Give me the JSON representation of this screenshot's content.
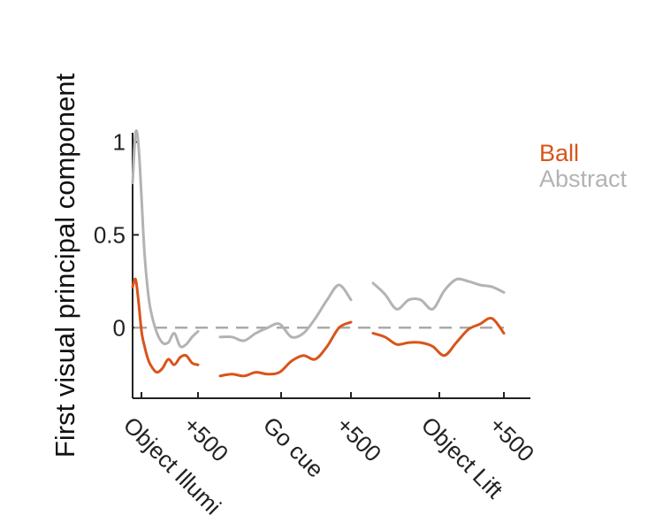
{
  "chart_data": {
    "type": "line",
    "ylabel": "First visual principal component",
    "xlabel": "",
    "ylim": [
      -0.38,
      1.05
    ],
    "yticks": [
      {
        "value": 0,
        "label": "0"
      },
      {
        "value": 0.5,
        "label": "0.5"
      },
      {
        "value": 1,
        "label": "1"
      }
    ],
    "reference_line": {
      "y": 0,
      "style": "dashed",
      "color": "#aaaaaa"
    },
    "grid": false,
    "legend": {
      "placement": "top-right"
    },
    "panels": [
      {
        "event": "Object Illumi",
        "offset_label": "+500",
        "x_range": [
          -50,
          500
        ],
        "event_x": 0,
        "offset_x": 500
      },
      {
        "event": "Go cue",
        "offset_label": "+500",
        "x_range": [
          -50,
          500
        ],
        "event_x": 0,
        "offset_x": 500
      },
      {
        "event": "Object Lift",
        "offset_label": "+500",
        "x_range": [
          -50,
          500
        ],
        "event_x": 0,
        "offset_x": 500
      }
    ],
    "series": [
      {
        "name": "Ball",
        "color": "#d9541a",
        "panels": [
          {
            "x": [
              -50,
              -25,
              0,
              25,
              50,
              75,
              100,
              150,
              200,
              250,
              300,
              350,
              400,
              450,
              500
            ],
            "y": [
              0.22,
              0.26,
              0.14,
              -0.02,
              -0.1,
              -0.16,
              -0.2,
              -0.24,
              -0.22,
              -0.17,
              -0.2,
              -0.16,
              -0.15,
              -0.19,
              -0.2
            ]
          },
          {
            "x": [
              -50,
              0,
              50,
              100,
              150,
              200,
              250,
              300,
              350,
              400,
              450,
              500
            ],
            "y": [
              -0.26,
              -0.25,
              -0.26,
              -0.24,
              -0.25,
              -0.24,
              -0.18,
              -0.15,
              -0.17,
              -0.1,
              0.0,
              0.03
            ]
          },
          {
            "x": [
              -50,
              0,
              50,
              100,
              150,
              200,
              250,
              300,
              350,
              400,
              450,
              500
            ],
            "y": [
              -0.03,
              -0.05,
              -0.09,
              -0.08,
              -0.08,
              -0.1,
              -0.15,
              -0.08,
              -0.01,
              0.02,
              0.05,
              -0.03
            ]
          }
        ]
      },
      {
        "name": "Abstract",
        "color": "#b3b3b3",
        "panels": [
          {
            "x": [
              -50,
              -25,
              0,
              25,
              50,
              75,
              100,
              150,
              200,
              250,
              300,
              350,
              400,
              450,
              500
            ],
            "y": [
              0.78,
              1.05,
              0.98,
              0.7,
              0.4,
              0.22,
              0.1,
              -0.02,
              -0.08,
              -0.08,
              -0.03,
              -0.1,
              -0.09,
              -0.05,
              -0.02
            ]
          },
          {
            "x": [
              -50,
              0,
              50,
              100,
              150,
              200,
              250,
              300,
              350,
              400,
              450,
              500
            ],
            "y": [
              -0.05,
              -0.05,
              -0.07,
              -0.03,
              0.0,
              0.02,
              -0.05,
              -0.03,
              0.05,
              0.15,
              0.23,
              0.15
            ]
          },
          {
            "x": [
              -50,
              0,
              50,
              100,
              150,
              200,
              250,
              300,
              350,
              400,
              450,
              500
            ],
            "y": [
              0.24,
              0.18,
              0.1,
              0.15,
              0.15,
              0.1,
              0.2,
              0.26,
              0.25,
              0.23,
              0.22,
              0.19
            ]
          }
        ]
      }
    ]
  }
}
